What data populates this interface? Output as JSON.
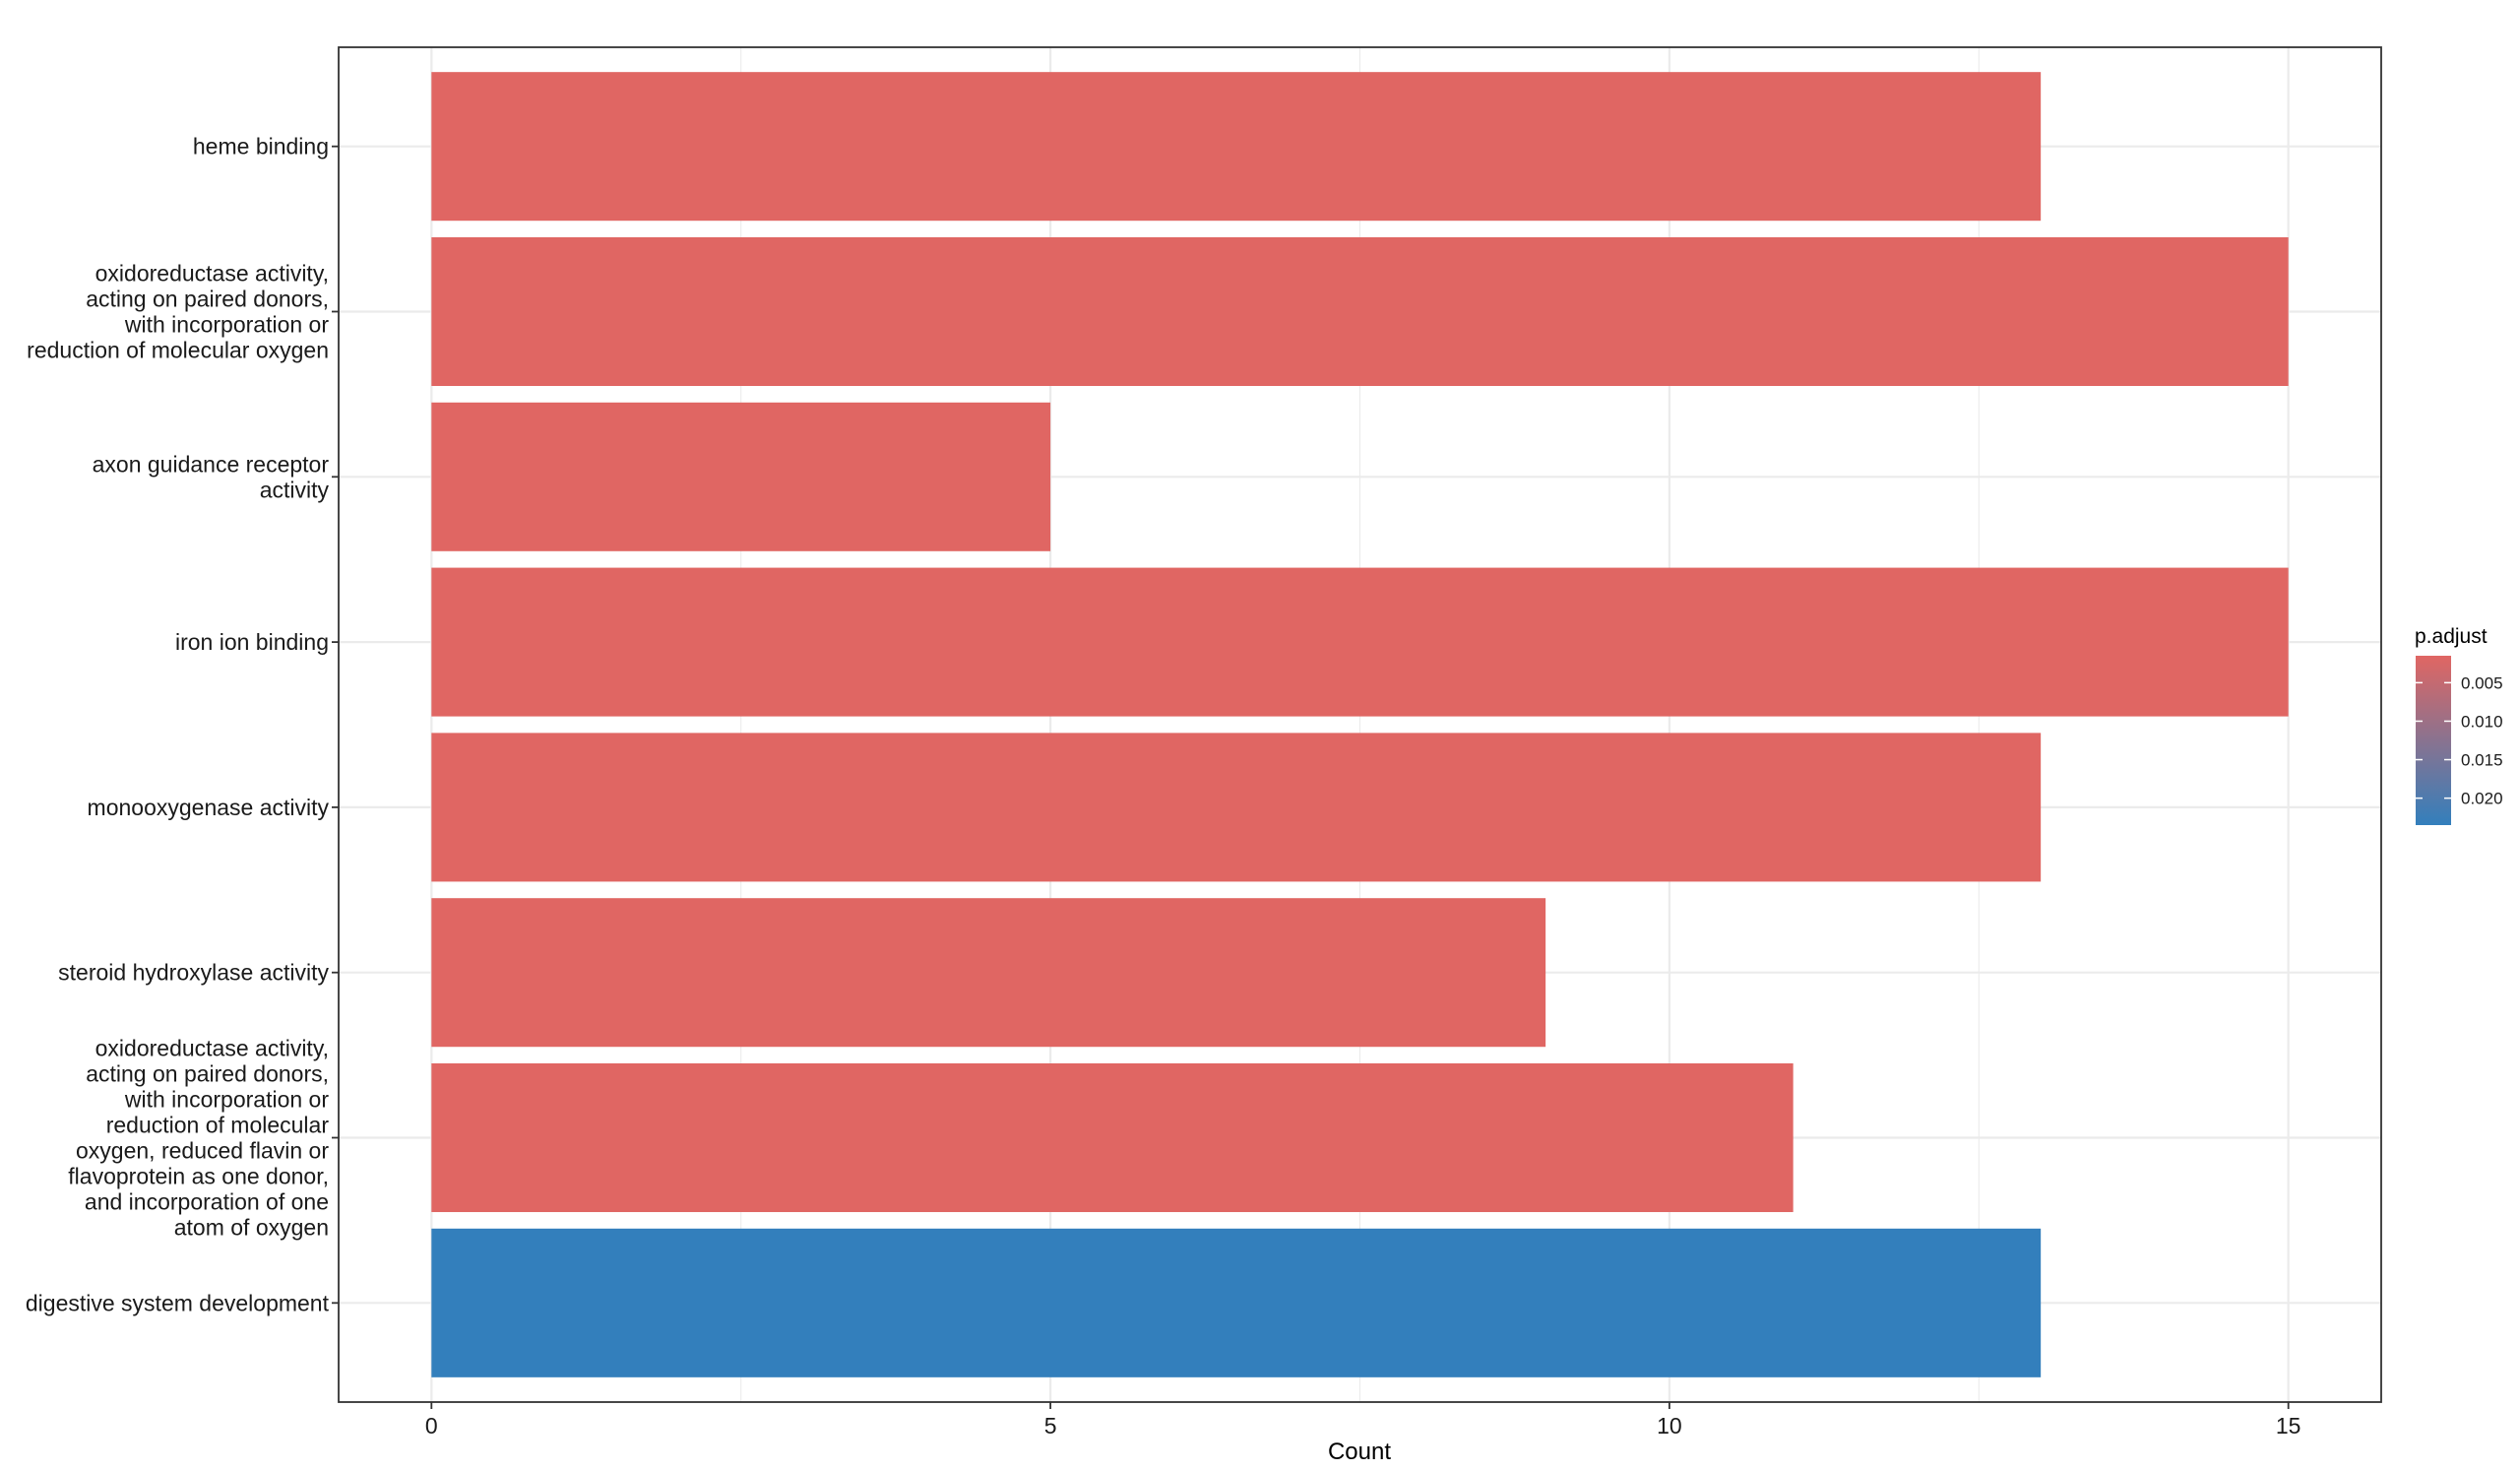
{
  "chart_data": {
    "type": "bar",
    "orientation": "horizontal",
    "categories": [
      "digestive system development",
      "oxidoreductase activity, acting on paired donors, with incorporation or reduction of molecular oxygen, reduced flavin or flavoprotein as one donor, and incorporation of one atom of oxygen",
      "steroid hydroxylase activity",
      "monooxygenase activity",
      "iron ion binding",
      "axon guidance receptor activity",
      "oxidoreductase activity, acting on paired donors, with incorporation or reduction of molecular oxygen",
      "heme binding"
    ],
    "category_lines": [
      [
        "digestive system development"
      ],
      [
        "oxidoreductase activity,",
        "acting on paired donors,",
        "with incorporation or",
        "reduction of molecular",
        "oxygen, reduced flavin or",
        "flavoprotein as one donor,",
        "and incorporation of one",
        "atom of oxygen"
      ],
      [
        "steroid hydroxylase activity"
      ],
      [
        "monooxygenase activity"
      ],
      [
        "iron ion binding"
      ],
      [
        "axon guidance receptor",
        "activity"
      ],
      [
        "oxidoreductase activity,",
        "acting on paired donors,",
        "with incorporation or",
        "reduction of molecular oxygen"
      ],
      [
        "heme binding"
      ]
    ],
    "values": [
      13,
      11,
      9,
      13,
      15,
      5,
      15,
      13
    ],
    "p_adjust": [
      0.0235,
      0.0015,
      0.0015,
      0.0015,
      0.0015,
      0.0015,
      0.0015,
      0.0015
    ],
    "xlabel": "Count",
    "ylabel": "",
    "xlim": [
      -0.75,
      15.75
    ],
    "xticks": [
      0,
      5,
      10,
      15
    ],
    "grid": true,
    "legend": {
      "title": "p.adjust",
      "placement": "right",
      "ticks": [
        {
          "value": 0.005,
          "label": "0.005"
        },
        {
          "value": 0.01,
          "label": "0.010"
        },
        {
          "value": 0.015,
          "label": "0.015"
        },
        {
          "value": 0.02,
          "label": "0.020"
        }
      ],
      "range": [
        0.0015,
        0.0235
      ],
      "low_color": "#e06663",
      "high_color": "#337fbc"
    }
  }
}
